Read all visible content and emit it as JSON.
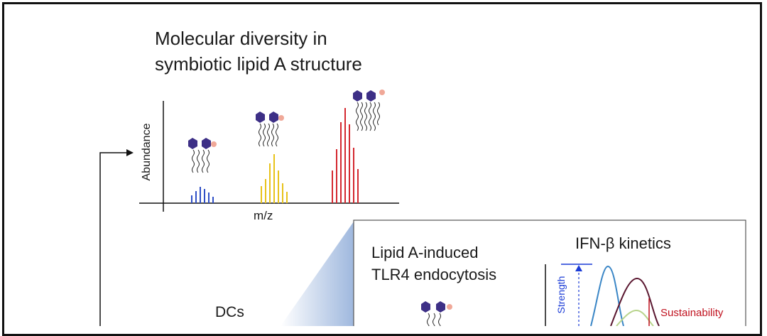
{
  "title_line1": "Molecular diversity in",
  "title_line2": "symbiotic lipid A structure",
  "y_axis_label": "Abundance",
  "x_axis_label": "m/z",
  "panel_title_line1": "Lipid A-induced",
  "panel_title_line2": "TLR4 endocytosis",
  "kinetics_title": "IFN-β kinetics",
  "strength_label": "Strength",
  "sustainability_label": "Sustainability",
  "dcs_label": "DCs",
  "colors": {
    "blue": "#2f4fc6",
    "yellow": "#e8c21a",
    "red": "#d4282f",
    "hexagon": "#3d2f86",
    "phosphate": "#f0a898"
  }
}
